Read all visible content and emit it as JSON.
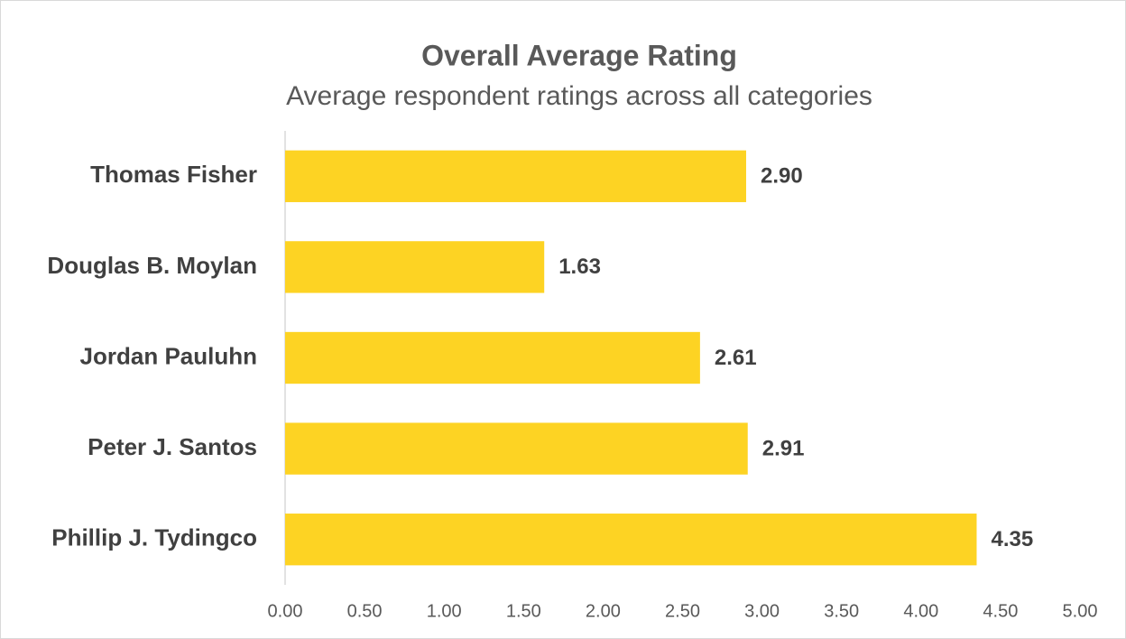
{
  "chart_data": {
    "type": "bar",
    "orientation": "horizontal",
    "title": "Overall Average Rating",
    "subtitle": "Average respondent ratings across all categories",
    "categories": [
      "Thomas Fisher",
      "Douglas B. Moylan",
      "Jordan Pauluhn",
      "Peter J. Santos",
      "Phillip J. Tydingco"
    ],
    "values": [
      2.9,
      1.63,
      2.61,
      2.91,
      4.35
    ],
    "value_labels": [
      "2.90",
      "1.63",
      "2.61",
      "2.91",
      "4.35"
    ],
    "color": "#fdd323",
    "xlim": [
      0,
      5
    ],
    "xticks": [
      {
        "value": 0,
        "label": "0.00"
      },
      {
        "value": 0.5,
        "label": "0.50"
      },
      {
        "value": 1,
        "label": "1.00"
      },
      {
        "value": 1.5,
        "label": "1.50"
      },
      {
        "value": 2,
        "label": "2.00"
      },
      {
        "value": 2.5,
        "label": "2.50"
      },
      {
        "value": 3,
        "label": "3.00"
      },
      {
        "value": 3.5,
        "label": "3.50"
      },
      {
        "value": 4,
        "label": "4.00"
      },
      {
        "value": 4.5,
        "label": "4.50"
      },
      {
        "value": 5,
        "label": "5.00"
      }
    ],
    "grid": false
  }
}
